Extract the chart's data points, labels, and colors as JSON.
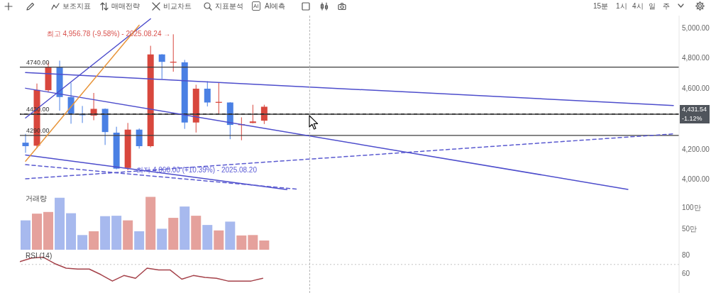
{
  "chart_data": [
    {
      "type": "other",
      "annotations": [
        "보조지표",
        "매매전략",
        "비교차트",
        "지표분석",
        "AI",
        "AI예측"
      ],
      "categories": [
        "15분",
        "1시",
        "4시",
        "일",
        "주"
      ]
    },
    {
      "type": "candlestick",
      "categories": [
        null,
        null,
        null,
        null,
        null,
        null,
        null,
        null,
        null,
        null,
        null,
        null,
        null,
        null,
        null,
        null,
        null,
        null,
        null,
        null,
        null,
        null,
        null,
        null,
        null,
        null,
        null,
        null,
        null,
        null,
        null,
        null,
        null,
        null,
        null,
        null,
        null,
        null,
        null,
        null,
        null,
        null,
        null,
        null,
        null,
        null,
        null,
        null,
        null,
        null,
        null,
        null,
        null,
        null,
        null,
        null,
        null,
        null
      ],
      "ohlc": [
        [
          4242,
          4300,
          4175,
          4219
        ],
        [
          4222,
          4632,
          4205,
          4590
        ],
        [
          4588,
          4770,
          4577,
          4738
        ],
        [
          4738,
          4783,
          4453,
          4543
        ],
        [
          4543,
          4637,
          4367,
          4434
        ],
        [
          4434,
          4484,
          4372,
          4423
        ],
        [
          4421,
          4570,
          4390,
          4465
        ],
        [
          4465,
          4468,
          4227,
          4312
        ],
        [
          4308,
          4347,
          4066,
          4071
        ],
        [
          4075,
          4372,
          4060,
          4328
        ],
        [
          4328,
          4336,
          4203,
          4219
        ],
        [
          4219,
          4881,
          4211,
          4824
        ],
        [
          4824,
          4826,
          4663,
          4775
        ],
        [
          4770,
          4956.78,
          4710,
          4776
        ],
        [
          4772,
          4788,
          4333,
          4375
        ],
        [
          4375,
          4624,
          4309,
          4598
        ],
        [
          4598,
          4647,
          4481,
          4507
        ],
        [
          4507,
          4637,
          4434,
          4511
        ],
        [
          4507,
          4509,
          4265,
          4359
        ],
        [
          4359,
          4409,
          4258,
          4364
        ],
        [
          4372,
          4492,
          4370,
          4382
        ],
        [
          4387,
          4492,
          4365,
          4479
        ],
        null,
        null,
        null,
        null,
        null,
        null,
        null,
        null,
        null,
        null,
        null,
        null,
        null,
        null,
        null,
        null,
        null,
        null,
        null,
        null,
        null,
        null,
        null,
        null,
        null,
        null,
        null,
        null,
        null,
        null,
        null,
        null,
        null,
        null,
        null,
        null
      ],
      "colors": [
        "#4a80e4",
        "#d8473d",
        "#d8473d",
        "#4a80e4",
        "#4a80e4",
        "#4a80e4",
        "#d8473d",
        "#4a80e4",
        "#4a80e4",
        "#d8473d",
        "#4a80e4",
        "#d8473d",
        "#4a80e4",
        "#d8473d",
        "#4a80e4",
        "#d8473d",
        "#4a80e4",
        "#d8473d",
        "#4a80e4",
        "#d8473d",
        "#d8473d",
        "#d8473d",
        null,
        null,
        null,
        null,
        null,
        null,
        null,
        null,
        null,
        null,
        null,
        null,
        null,
        null,
        null,
        null,
        null,
        null,
        null,
        null,
        null,
        null,
        null,
        null,
        null,
        null,
        null,
        null,
        null,
        null,
        null,
        null,
        null,
        null,
        null,
        null
      ],
      "series": [
        {
          "type": "line",
          "color": "#4d4dcc",
          "values": [
            4704,
            null,
            null,
            null,
            null,
            null,
            null,
            null,
            null,
            null,
            null,
            null,
            null,
            null,
            null,
            null,
            null,
            null,
            null,
            null,
            null,
            null,
            null,
            null,
            null,
            null,
            null,
            null,
            null,
            null,
            null,
            null,
            null,
            null,
            null,
            null,
            null,
            null,
            null,
            null,
            null,
            null,
            null,
            null,
            null,
            null,
            null,
            null,
            null,
            null,
            null,
            null,
            null,
            null,
            null,
            null,
            null,
            4487
          ]
        },
        {
          "type": "line",
          "color": "#4d4dcc",
          "values": [
            4601,
            null,
            null,
            null,
            null,
            null,
            null,
            null,
            null,
            null,
            null,
            null,
            null,
            null,
            null,
            null,
            null,
            null,
            null,
            null,
            null,
            null,
            null,
            null,
            null,
            null,
            null,
            null,
            null,
            null,
            null,
            null,
            null,
            null,
            null,
            null,
            null,
            null,
            null,
            null,
            null,
            null,
            null,
            null,
            null,
            null,
            null,
            null,
            null,
            null,
            null,
            null,
            null,
            3934,
            null,
            null,
            null,
            null
          ]
        },
        {
          "type": "line",
          "color": "#4d4dcc",
          "values": [
            4161,
            null,
            null,
            null,
            null,
            null,
            null,
            null,
            null,
            null,
            null,
            null,
            null,
            null,
            null,
            null,
            null,
            null,
            null,
            null,
            null,
            null,
            null,
            3933,
            null,
            null,
            null,
            null,
            null,
            null,
            null,
            null,
            null,
            null,
            null,
            null,
            null,
            null,
            null,
            null,
            null,
            null,
            null,
            null,
            null,
            null,
            null,
            null,
            null,
            null,
            null,
            null,
            null,
            null,
            null,
            null,
            null,
            null
          ]
        },
        {
          "type": "line",
          "color": "#5a5ad0",
          "line_style": "dashed",
          "values": [
            4004,
            null,
            null,
            null,
            null,
            null,
            null,
            null,
            null,
            null,
            null,
            null,
            null,
            null,
            null,
            null,
            null,
            null,
            null,
            null,
            null,
            null,
            null,
            null,
            null,
            null,
            null,
            null,
            null,
            null,
            null,
            null,
            null,
            null,
            null,
            null,
            null,
            null,
            null,
            null,
            null,
            null,
            null,
            null,
            null,
            null,
            null,
            null,
            null,
            null,
            null,
            null,
            null,
            null,
            null,
            null,
            null,
            4300
          ]
        },
        {
          "type": "line",
          "color": "#5a5ad0",
          "line_style": "dashed",
          "values": [
            4097,
            null,
            null,
            null,
            null,
            null,
            null,
            null,
            null,
            null,
            null,
            null,
            null,
            null,
            null,
            null,
            null,
            null,
            null,
            null,
            null,
            null,
            null,
            null,
            3935,
            null,
            null,
            null,
            null,
            null,
            null,
            null,
            null,
            null,
            null,
            null,
            null,
            null,
            null,
            null,
            null,
            null,
            null,
            null,
            null,
            null,
            null,
            null,
            null,
            null,
            null,
            null,
            null,
            null,
            null,
            null,
            null,
            null
          ]
        },
        {
          "type": "line",
          "color": "#4d4dcc",
          "values": [
            4405,
            null,
            null,
            null,
            null,
            null,
            null,
            null,
            null,
            null,
            null,
            5059,
            null,
            null,
            null,
            null,
            null,
            null,
            null,
            null,
            null,
            null,
            null,
            null,
            null,
            null,
            null,
            null,
            null,
            null,
            null,
            null,
            null,
            null,
            null,
            null,
            null,
            null,
            null,
            null,
            null,
            null,
            null,
            null,
            null,
            null,
            null,
            null,
            null,
            null,
            null,
            null,
            null,
            null,
            null,
            null,
            null,
            null
          ]
        },
        {
          "type": "line",
          "color": "#e8963c",
          "values": [
            4120,
            null,
            null,
            null,
            null,
            null,
            null,
            null,
            null,
            null,
            5017,
            null,
            null,
            null,
            null,
            null,
            null,
            null,
            null,
            null,
            null,
            null,
            null,
            null,
            null,
            null,
            null,
            null,
            null,
            null,
            null,
            null,
            null,
            null,
            null,
            null,
            null,
            null,
            null,
            null,
            null,
            null,
            null,
            null,
            null,
            null,
            null,
            null,
            null,
            null,
            null,
            null,
            null,
            null,
            null,
            null,
            null,
            null
          ]
        }
      ],
      "ylim": [
        3915,
        5080
      ],
      "yticks": [
        {
          "value": 5000,
          "label": "5,000.00"
        },
        {
          "value": 4800,
          "label": "4,800.00"
        },
        {
          "value": 4600,
          "label": "4,600.00"
        },
        {
          "value": 4200,
          "label": "4,200.00"
        },
        {
          "value": 4000,
          "label": "4,000.00"
        }
      ],
      "ref_lines": [
        {
          "axis": "y",
          "value": 4740,
          "label": "4740.00",
          "color": "#3c3c3c"
        },
        {
          "axis": "y",
          "value": 4430,
          "label": "4430.00",
          "color": "#3c3c3c"
        },
        {
          "axis": "y",
          "value": 4290,
          "label": "4290.00",
          "color": "#3c3c3c"
        },
        {
          "axis": "y",
          "value": 4431.54,
          "label": "4,431.54",
          "color": "#222222",
          "line_style": "dashed"
        }
      ],
      "annotations": [
        "최고 4,956.78 (-9.58%) - 2025.08.24 →",
        "최저 4,060.00 (+10.39%) - 2025.08.20",
        "-1.12%"
      ],
      "tick_labels": "y"
    },
    {
      "type": "bar",
      "categories": [
        null,
        null,
        null,
        null,
        null,
        null,
        null,
        null,
        null,
        null,
        null,
        null,
        null,
        null,
        null,
        null,
        null,
        null,
        null,
        null,
        null,
        null,
        null,
        null,
        null,
        null,
        null,
        null,
        null,
        null,
        null,
        null,
        null,
        null,
        null,
        null,
        null,
        null,
        null,
        null,
        null,
        null,
        null,
        null,
        null,
        null,
        null,
        null,
        null,
        null,
        null,
        null,
        null,
        null,
        null,
        null,
        null,
        null
      ],
      "values": [
        70,
        86,
        90,
        124,
        87,
        35,
        44,
        80,
        81,
        70,
        44,
        126,
        50,
        76,
        103,
        81,
        59,
        46,
        67,
        34,
        35,
        22,
        null,
        null,
        null,
        null,
        null,
        null,
        null,
        null,
        null,
        null,
        null,
        null,
        null,
        null,
        null,
        null,
        null,
        null,
        null,
        null,
        null,
        null,
        null,
        null,
        null,
        null,
        null,
        null,
        null,
        null,
        null,
        null,
        null,
        null,
        null,
        null
      ],
      "colors": [
        "#a7b9ee",
        "#e5a19c",
        "#e5a19c",
        "#a7b9ee",
        "#a7b9ee",
        "#a7b9ee",
        "#e5a19c",
        "#a7b9ee",
        "#a7b9ee",
        "#e5a19c",
        "#a7b9ee",
        "#e5a19c",
        "#a7b9ee",
        "#e5a19c",
        "#a7b9ee",
        "#e5a19c",
        "#a7b9ee",
        "#e5a19c",
        "#a7b9ee",
        "#e5a19c",
        "#e5a19c",
        "#e5a19c",
        null,
        null,
        null,
        null,
        null,
        null,
        null,
        null,
        null,
        null,
        null,
        null,
        null,
        null,
        null,
        null,
        null,
        null,
        null,
        null,
        null,
        null,
        null,
        null,
        null,
        null,
        null,
        null,
        null,
        null,
        null,
        null,
        null,
        null,
        null,
        null
      ],
      "ylim": [
        0,
        137
      ],
      "yticks": [
        {
          "value": 100,
          "label": "100만"
        },
        {
          "value": 50,
          "label": "50만"
        }
      ],
      "annotations": [
        "거래량"
      ],
      "tick_labels": "y"
    },
    {
      "type": "line",
      "categories": [
        null,
        null,
        null,
        null,
        null,
        null,
        null,
        null,
        null,
        null,
        null,
        null,
        null,
        null,
        null,
        null,
        null,
        null,
        null,
        null,
        null,
        null,
        null,
        null,
        null,
        null,
        null,
        null,
        null,
        null,
        null,
        null,
        null,
        null,
        null,
        null,
        null,
        null,
        null,
        null,
        null,
        null,
        null,
        null,
        null,
        null,
        null,
        null,
        null,
        null,
        null,
        null,
        null,
        null,
        null,
        null,
        null,
        null
      ],
      "series": [
        {
          "color": "#a5424a",
          "values": [
            73,
            77,
            78,
            71,
            66,
            65,
            65,
            59,
            52,
            58,
            55,
            66,
            64,
            64,
            54,
            58,
            56,
            55,
            52,
            52,
            52,
            55,
            null,
            null,
            null,
            null,
            null,
            null,
            null,
            null,
            null,
            null,
            null,
            null,
            null,
            null,
            null,
            null,
            null,
            null,
            null,
            null,
            null,
            null,
            null,
            null,
            null,
            null,
            null,
            null,
            null,
            null,
            null,
            null,
            null,
            null,
            null,
            null
          ]
        }
      ],
      "ylim": [
        39,
        86
      ],
      "yticks": [
        80,
        60
      ],
      "ref_lines": [
        {
          "axis": "y",
          "value": 70,
          "color": "#c4c4c4",
          "line_style": "dotted"
        }
      ],
      "annotations": [
        "RSI (14)"
      ],
      "tick_labels": "y"
    }
  ]
}
